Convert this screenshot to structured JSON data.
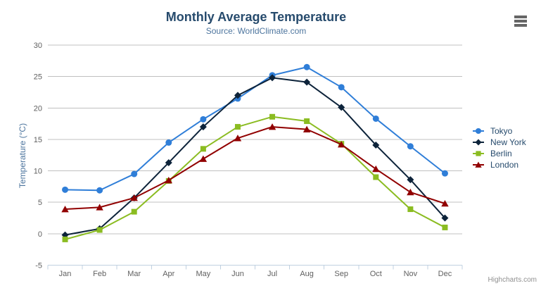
{
  "chart_data": {
    "type": "line",
    "title": "Monthly Average Temperature",
    "subtitle": "Source: WorldClimate.com",
    "categories": [
      "Jan",
      "Feb",
      "Mar",
      "Apr",
      "May",
      "Jun",
      "Jul",
      "Aug",
      "Sep",
      "Oct",
      "Nov",
      "Dec"
    ],
    "xlabel": "",
    "ylabel": "Temperature (°C)",
    "ylim": [
      -5,
      30
    ],
    "yticks": [
      -5,
      0,
      5,
      10,
      15,
      20,
      25,
      30
    ],
    "grid": true,
    "legend_position": "right",
    "series": [
      {
        "name": "Tokyo",
        "color": "#2f7ed8",
        "marker": "circle",
        "values": [
          7.0,
          6.9,
          9.5,
          14.5,
          18.2,
          21.5,
          25.2,
          26.5,
          23.3,
          18.3,
          13.9,
          9.6
        ]
      },
      {
        "name": "New York",
        "color": "#0d233a",
        "marker": "diamond",
        "values": [
          -0.2,
          0.8,
          5.7,
          11.3,
          17.0,
          22.0,
          24.8,
          24.1,
          20.1,
          14.1,
          8.6,
          2.5
        ]
      },
      {
        "name": "Berlin",
        "color": "#8bbc21",
        "marker": "square",
        "values": [
          -0.9,
          0.6,
          3.5,
          8.4,
          13.5,
          17.0,
          18.6,
          17.9,
          14.3,
          9.0,
          3.9,
          1.0
        ]
      },
      {
        "name": "London",
        "color": "#910000",
        "marker": "triangle",
        "values": [
          3.9,
          4.2,
          5.7,
          8.5,
          11.9,
          15.2,
          17.0,
          16.6,
          14.2,
          10.3,
          6.6,
          4.8
        ]
      }
    ]
  },
  "credits": "Highcharts.com",
  "icons": {
    "context_menu": "hamburger-menu-icon"
  },
  "colors": {
    "title": "#274b6d",
    "subtitle": "#4d759e",
    "axis_label": "#606060",
    "axis_title": "#4d759e",
    "gridline": "#c0c0c0",
    "axis_line": "#c0d0e0",
    "legend_text": "#274b6d",
    "credits": "#909090",
    "menu_icon": "#666666",
    "background": "#ffffff"
  }
}
